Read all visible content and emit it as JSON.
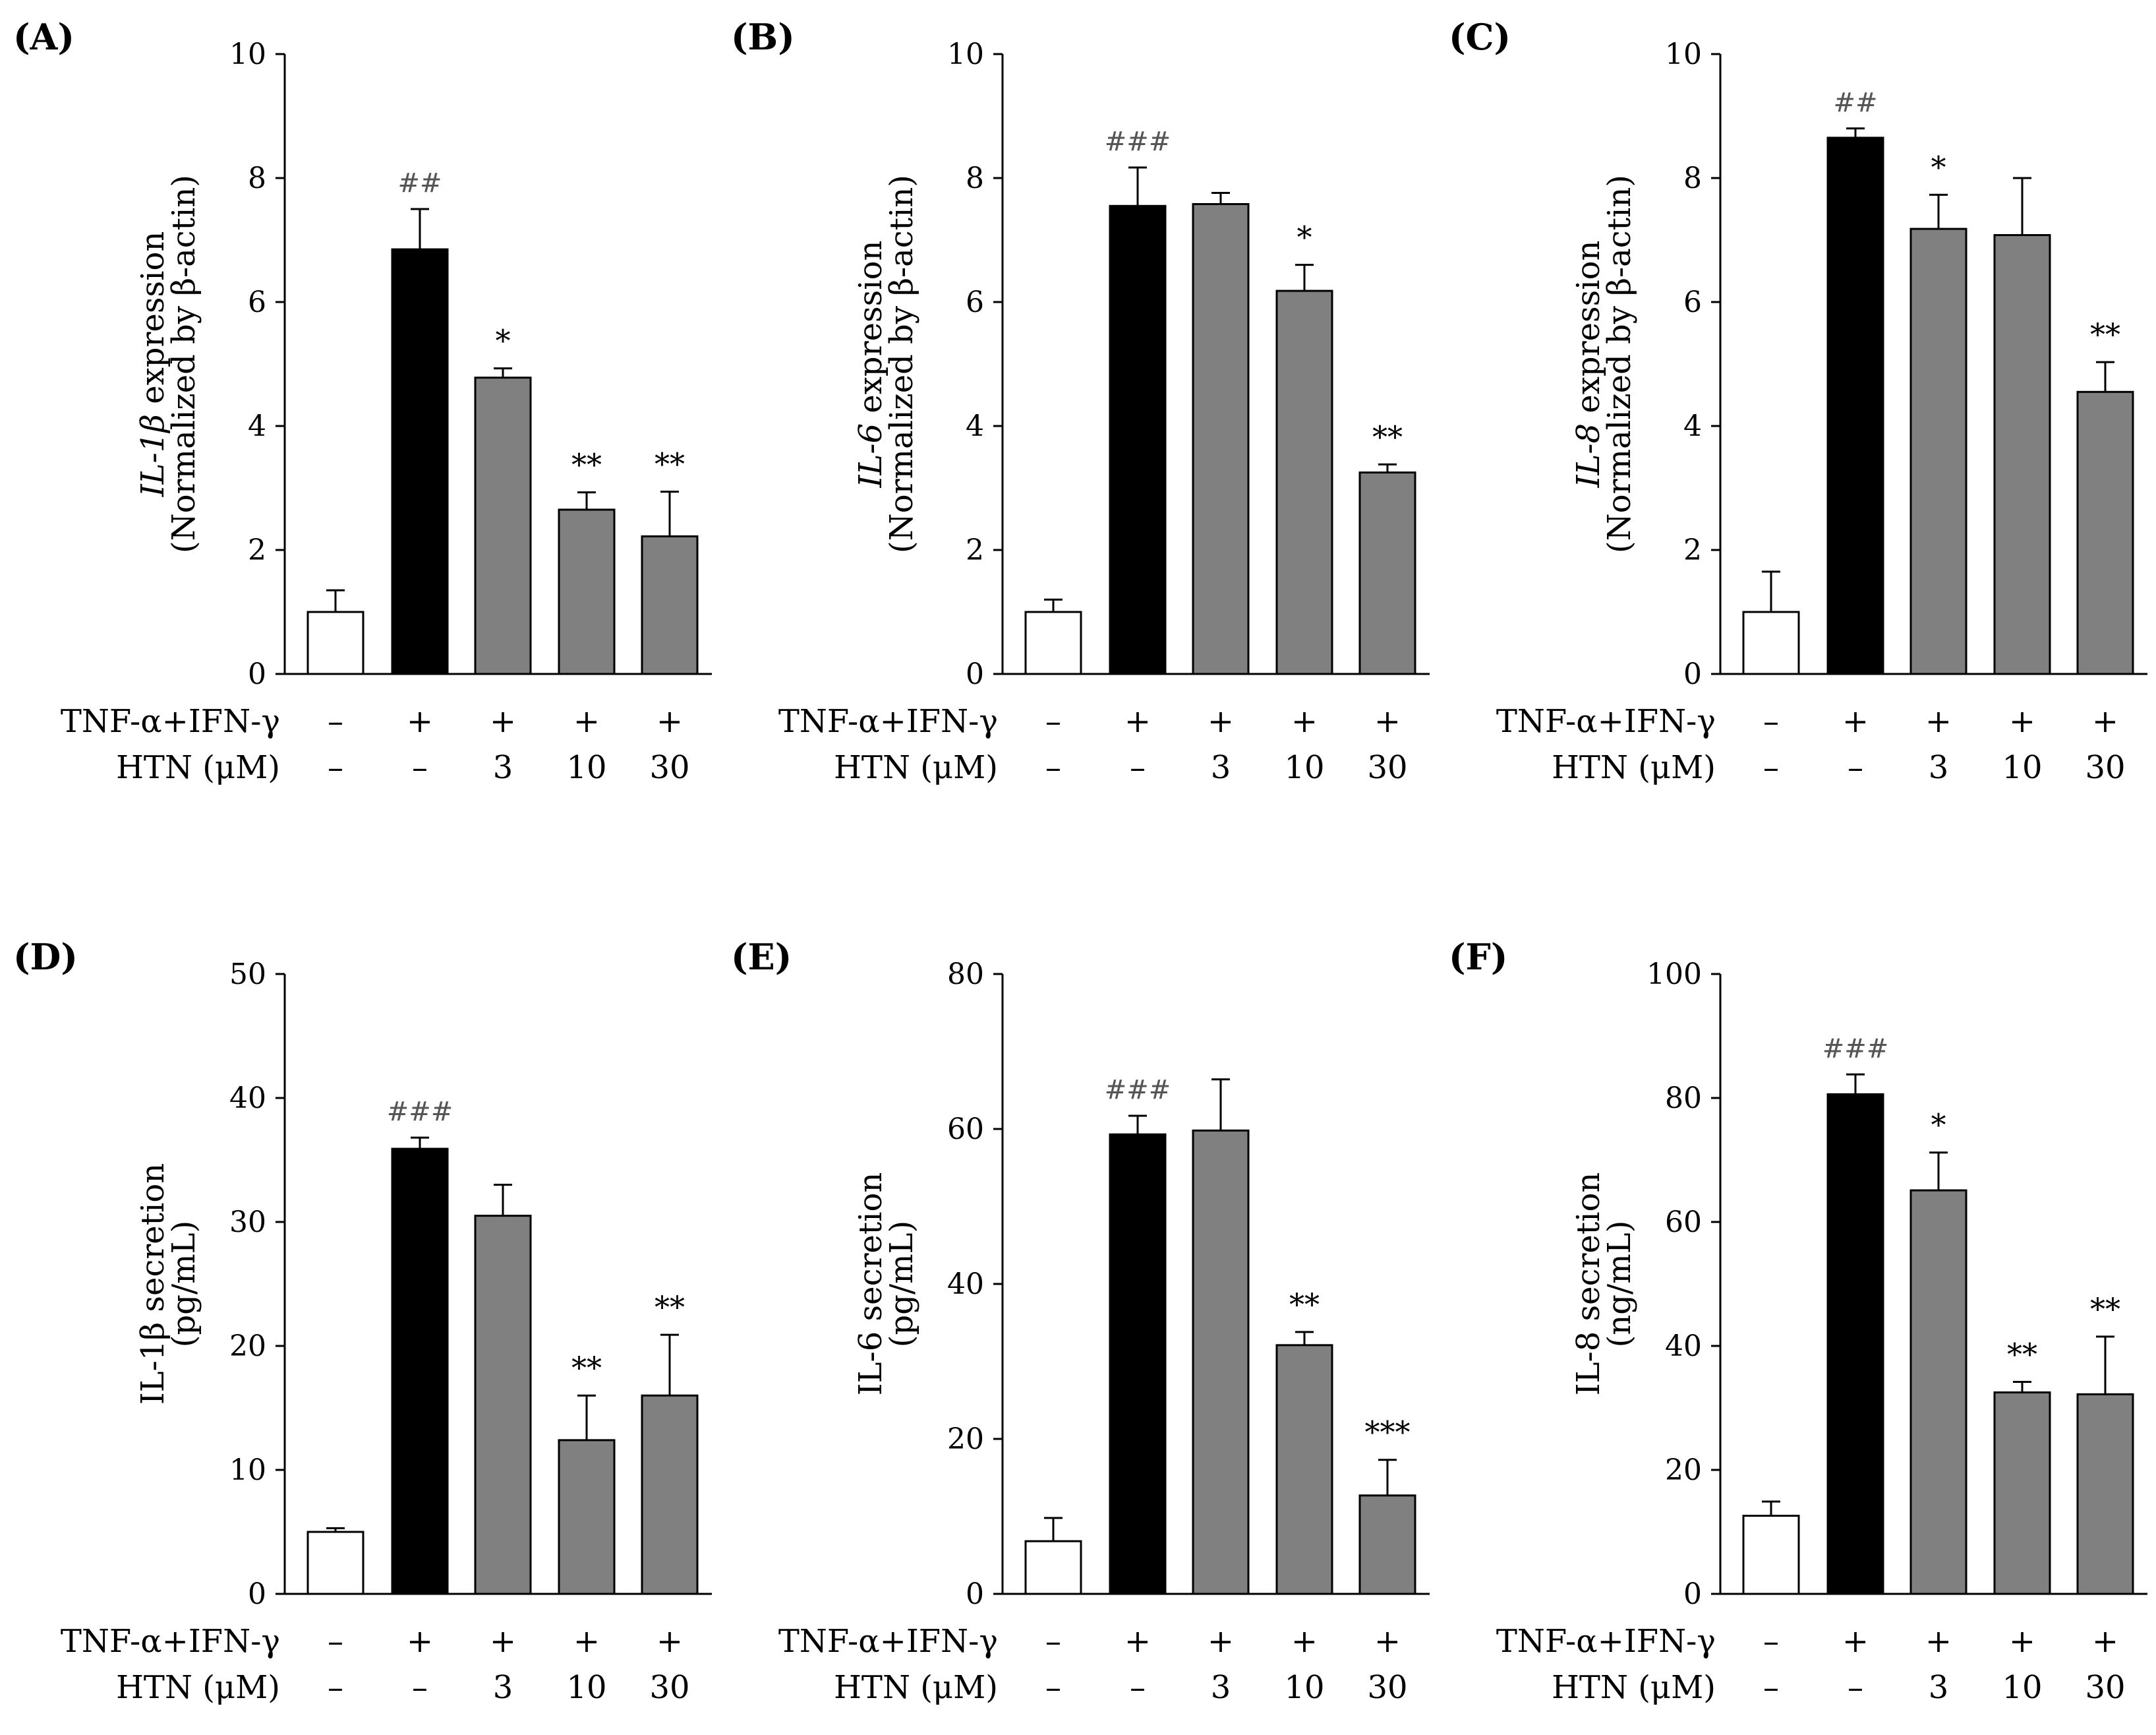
{
  "figure": {
    "row_labels": {
      "treatment": "TNF-α+IFN-γ",
      "dose": "HTN  (μM)"
    },
    "colors": {
      "control": "#ffffff",
      "stimulated": "#000000",
      "treated": "#808080",
      "edge": "#000000"
    }
  },
  "chart_data": [
    {
      "id": "A",
      "panel_label": "(A)",
      "type": "bar",
      "ylabel_italic": "IL-1β",
      "ylabel_rest": " expression",
      "ylabel_line2": "(Normalized by β-actin)",
      "ylim": [
        0,
        10
      ],
      "yticks": [
        0,
        2,
        4,
        6,
        8,
        10
      ],
      "ytick_labels": [
        "0",
        "2",
        "4",
        "6",
        "8",
        "10"
      ],
      "values": [
        1.0,
        6.85,
        4.78,
        2.65,
        2.22
      ],
      "errors": [
        0.35,
        0.65,
        0.15,
        0.28,
        0.72
      ],
      "fills": [
        "control",
        "stimulated",
        "treated",
        "treated",
        "treated"
      ],
      "annotations": [
        "",
        "##",
        "*",
        "**",
        "**"
      ],
      "treatment": [
        "–",
        "+",
        "+",
        "+",
        "+"
      ],
      "dose": [
        "–",
        "–",
        "3",
        "10",
        "30"
      ]
    },
    {
      "id": "B",
      "panel_label": "(B)",
      "type": "bar",
      "ylabel_italic": "IL-6",
      "ylabel_rest": " expression",
      "ylabel_line2": "(Normalized by β-actin)",
      "ylim": [
        0,
        10
      ],
      "yticks": [
        0,
        2,
        4,
        6,
        8,
        10
      ],
      "ytick_labels": [
        "0",
        "2",
        "4",
        "6",
        "8",
        "10"
      ],
      "values": [
        1.0,
        7.55,
        7.58,
        6.18,
        3.25
      ],
      "errors": [
        0.2,
        0.62,
        0.18,
        0.42,
        0.13
      ],
      "fills": [
        "control",
        "stimulated",
        "treated",
        "treated",
        "treated"
      ],
      "annotations": [
        "",
        "###",
        "",
        "*",
        "**"
      ],
      "treatment": [
        "–",
        "+",
        "+",
        "+",
        "+"
      ],
      "dose": [
        "–",
        "–",
        "3",
        "10",
        "30"
      ]
    },
    {
      "id": "C",
      "panel_label": "(C)",
      "type": "bar",
      "ylabel_italic": "IL-8",
      "ylabel_rest": " expression",
      "ylabel_line2": "(Normalized by β-actin)",
      "ylim": [
        0,
        10
      ],
      "yticks": [
        0,
        2,
        4,
        6,
        8,
        10
      ],
      "ytick_labels": [
        "0",
        "2",
        "4",
        "6",
        "8",
        "10"
      ],
      "values": [
        1.0,
        8.65,
        7.18,
        7.08,
        4.55
      ],
      "errors": [
        0.65,
        0.15,
        0.55,
        0.92,
        0.48
      ],
      "fills": [
        "control",
        "stimulated",
        "treated",
        "treated",
        "treated"
      ],
      "annotations": [
        "",
        "##",
        "*",
        "",
        "**"
      ],
      "treatment": [
        "–",
        "+",
        "+",
        "+",
        "+"
      ],
      "dose": [
        "–",
        "–",
        "3",
        "10",
        "30"
      ]
    },
    {
      "id": "D",
      "panel_label": "(D)",
      "type": "bar",
      "ylabel_italic": "",
      "ylabel_rest": "IL-1β  secretion",
      "ylabel_line2": "(pg/mL)",
      "ylim": [
        0,
        50
      ],
      "yticks": [
        0,
        10,
        20,
        30,
        40,
        50
      ],
      "ytick_labels": [
        "0",
        "10",
        "20",
        "30",
        "40",
        "50"
      ],
      "values": [
        5.0,
        35.9,
        30.5,
        12.4,
        16.0
      ],
      "errors": [
        0.3,
        0.9,
        2.5,
        3.6,
        4.9
      ],
      "fills": [
        "control",
        "stimulated",
        "treated",
        "treated",
        "treated"
      ],
      "annotations": [
        "",
        "###",
        "",
        "**",
        "**"
      ],
      "treatment": [
        "–",
        "+",
        "+",
        "+",
        "+"
      ],
      "dose": [
        "–",
        "–",
        "3",
        "10",
        "30"
      ]
    },
    {
      "id": "E",
      "panel_label": "(E)",
      "type": "bar",
      "ylabel_italic": "",
      "ylabel_rest": "IL-6 secretion",
      "ylabel_line2": "(pg/mL)",
      "ylim": [
        0,
        80
      ],
      "yticks": [
        0,
        20,
        40,
        60,
        80
      ],
      "ytick_labels": [
        "0",
        "20",
        "40",
        "60",
        "80"
      ],
      "values": [
        6.8,
        59.3,
        59.8,
        32.1,
        12.7
      ],
      "errors": [
        3.0,
        2.4,
        6.6,
        1.7,
        4.6
      ],
      "fills": [
        "control",
        "stimulated",
        "treated",
        "treated",
        "treated"
      ],
      "annotations": [
        "",
        "###",
        "",
        "**",
        "***"
      ],
      "treatment": [
        "–",
        "+",
        "+",
        "+",
        "+"
      ],
      "dose": [
        "–",
        "–",
        "3",
        "10",
        "30"
      ]
    },
    {
      "id": "F",
      "panel_label": "(F)",
      "type": "bar",
      "ylabel_italic": "",
      "ylabel_rest": "IL-8 secretion",
      "ylabel_line2": "(ng/mL)",
      "ylim": [
        0,
        100
      ],
      "yticks": [
        0,
        20,
        40,
        60,
        80,
        100
      ],
      "ytick_labels": [
        "0",
        "20",
        "40",
        "60",
        "80",
        "100"
      ],
      "values": [
        12.6,
        80.6,
        65.1,
        32.5,
        32.2
      ],
      "errors": [
        2.3,
        3.2,
        6.1,
        1.7,
        9.3
      ],
      "fills": [
        "control",
        "stimulated",
        "treated",
        "treated",
        "treated"
      ],
      "annotations": [
        "",
        "###",
        "*",
        "**",
        "**"
      ],
      "treatment": [
        "–",
        "+",
        "+",
        "+",
        "+"
      ],
      "dose": [
        "–",
        "–",
        "3",
        "10",
        "30"
      ]
    }
  ]
}
